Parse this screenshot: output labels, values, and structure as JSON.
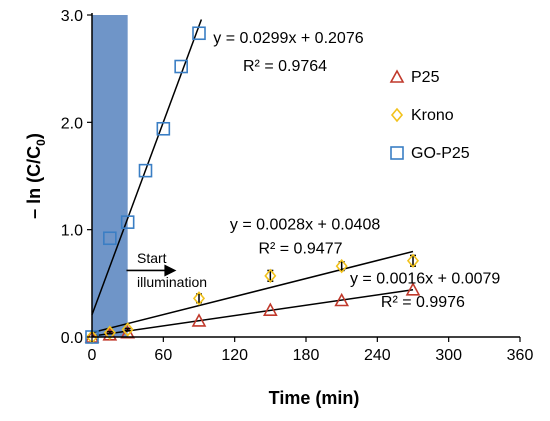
{
  "chart_data": {
    "type": "scatter",
    "xlabel": "Time (min)",
    "ylabel_main": "– ln (C/C",
    "ylabel_sub": "0",
    "ylabel_close": ")",
    "xlim": [
      0,
      360
    ],
    "ylim": [
      0,
      3.0
    ],
    "x_ticks": [
      0,
      60,
      120,
      180,
      240,
      300,
      360
    ],
    "y_ticks": [
      0.0,
      1.0,
      2.0,
      3.0
    ],
    "x_tick_labels": [
      "0",
      "60",
      "120",
      "180",
      "240",
      "300",
      "360"
    ],
    "y_tick_labels": [
      "0.0",
      "1.0",
      "2.0",
      "3.0"
    ],
    "grid": false,
    "legend_position": "right",
    "illumination_band": [
      0,
      30
    ],
    "illumination_color": "#6f95c8",
    "annotation": {
      "line1": "Start",
      "line2": "illumination",
      "arrow_from": [
        29,
        0.62
      ],
      "arrow_to": [
        71,
        0.62
      ]
    },
    "series": [
      {
        "name": "P25",
        "marker": "triangle",
        "color": "#c0392b",
        "points": [
          [
            0,
            0.0
          ],
          [
            15,
            0.02
          ],
          [
            30,
            0.04
          ],
          [
            90,
            0.15
          ],
          [
            150,
            0.25
          ],
          [
            210,
            0.34
          ],
          [
            270,
            0.44
          ]
        ],
        "fit": {
          "slope": 0.0016,
          "intercept": 0.0079,
          "x_range": [
            0,
            270
          ]
        },
        "equation": "y = 0.0016x + 0.0079",
        "r2": "R² = 0.9976",
        "eq_anchor": [
          217,
          0.5
        ],
        "r2_anchor": [
          243,
          0.28
        ]
      },
      {
        "name": "Krono",
        "marker": "diamond",
        "color": "#f2c21b",
        "points": [
          [
            0,
            0.0
          ],
          [
            15,
            0.04
          ],
          [
            30,
            0.07
          ],
          [
            90,
            0.36
          ],
          [
            150,
            0.57
          ],
          [
            210,
            0.66
          ],
          [
            270,
            0.71
          ]
        ],
        "errors": [
          0,
          0.01,
          0.01,
          0.04,
          0.05,
          0.04,
          0.05
        ],
        "fit": {
          "slope": 0.0028,
          "intercept": 0.0408,
          "x_range": [
            0,
            270
          ]
        },
        "equation": "y = 0.0028x + 0.0408",
        "r2": "R² = 0.9477",
        "eq_anchor": [
          116,
          1.0
        ],
        "r2_anchor": [
          140,
          0.78
        ]
      },
      {
        "name": "GO-P25",
        "marker": "square",
        "color": "#3a7ec4",
        "points": [
          [
            0,
            0.0
          ],
          [
            15,
            0.92
          ],
          [
            30,
            1.07
          ],
          [
            45,
            1.55
          ],
          [
            60,
            1.94
          ],
          [
            75,
            2.52
          ],
          [
            90,
            2.83
          ]
        ],
        "fit": {
          "slope": 0.0299,
          "intercept": 0.2076,
          "x_range": [
            0,
            92
          ]
        },
        "equation": "y = 0.0299x + 0.2076",
        "r2": "R² = 0.9764",
        "eq_anchor": [
          102,
          2.74
        ],
        "r2_anchor": [
          127,
          2.48
        ]
      }
    ]
  }
}
